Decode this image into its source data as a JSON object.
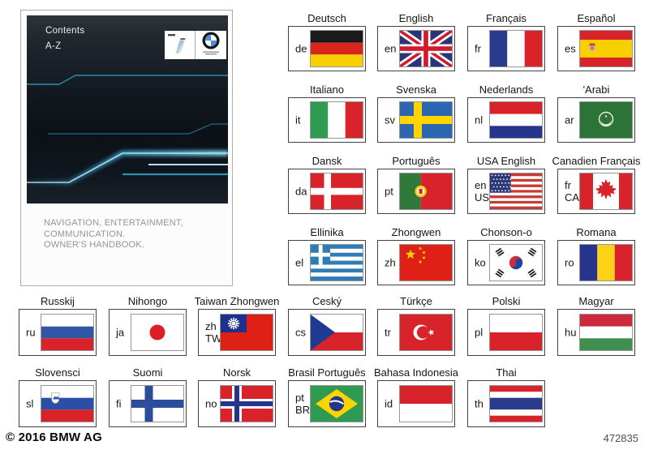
{
  "cover": {
    "title_line1": "Contents",
    "title_line2": "A-Z",
    "subtitle": "NAVIGATION, ENTERTAINMENT,\nCOMMUNICATION.\nOWNER'S HANDBOOK."
  },
  "icons": {
    "logos": [
      "bmw-i-logo",
      "bmw-roundel-logo"
    ],
    "flag_icons": [
      "de",
      "gb",
      "fr",
      "es",
      "it",
      "se",
      "nl",
      "arab",
      "dk",
      "pt",
      "us",
      "ca",
      "gr",
      "cn",
      "kr",
      "ro",
      "ru",
      "jp",
      "tw",
      "cz",
      "tr",
      "pl",
      "hu",
      "si",
      "fi",
      "no",
      "br",
      "id",
      "th"
    ]
  },
  "colors": {
    "streak_accent": "#49c4ef",
    "cover_background": "#121920"
  },
  "languages": {
    "rows": [
      [
        {
          "label": "Deutsch",
          "code": "de",
          "flag": "de"
        },
        {
          "label": "English",
          "code": "en",
          "flag": "gb"
        },
        {
          "label": "Français",
          "code": "fr",
          "flag": "fr"
        },
        {
          "label": "Español",
          "code": "es",
          "flag": "es"
        }
      ],
      [
        {
          "label": "Italiano",
          "code": "it",
          "flag": "it"
        },
        {
          "label": "Svenska",
          "code": "sv",
          "flag": "se"
        },
        {
          "label": "Nederlands",
          "code": "nl",
          "flag": "nl"
        },
        {
          "label": "'Arabi",
          "code": "ar",
          "flag": "arab"
        }
      ],
      [
        {
          "label": "Dansk",
          "code": "da",
          "flag": "dk"
        },
        {
          "label": "Português",
          "code": "pt",
          "flag": "pt"
        },
        {
          "label": "USA English",
          "code": "en",
          "code2": "US",
          "flag": "us"
        },
        {
          "label": "Canadien Français",
          "code": "fr",
          "code2": "CA",
          "flag": "ca"
        }
      ],
      [
        {
          "label": "Ellinika",
          "code": "el",
          "flag": "gr"
        },
        {
          "label": "Zhongwen",
          "code": "zh",
          "flag": "cn"
        },
        {
          "label": "Chonson-o",
          "code": "ko",
          "flag": "kr"
        },
        {
          "label": "Romana",
          "code": "ro",
          "flag": "ro"
        }
      ],
      [
        {
          "label": "Russkij",
          "code": "ru",
          "flag": "ru"
        },
        {
          "label": "Nihongo",
          "code": "ja",
          "flag": "jp"
        },
        {
          "label": "Taiwan Zhongwen",
          "code": "zh",
          "code2": "TW",
          "flag": "tw"
        },
        {
          "label": "Ceský",
          "code": "cs",
          "flag": "cz"
        },
        {
          "label": "Türkçe",
          "code": "tr",
          "flag": "tr"
        },
        {
          "label": "Polski",
          "code": "pl",
          "flag": "pl"
        },
        {
          "label": "Magyar",
          "code": "hu",
          "flag": "hu"
        }
      ],
      [
        {
          "label": "Slovensci",
          "code": "sl",
          "flag": "si"
        },
        {
          "label": "Suomi",
          "code": "fi",
          "flag": "fi"
        },
        {
          "label": "Norsk",
          "code": "no",
          "flag": "no"
        },
        {
          "label": "Brasil Português",
          "code": "pt",
          "code2": "BR",
          "flag": "br"
        },
        {
          "label": "Bahasa Indonesia",
          "code": "id",
          "flag": "id"
        },
        {
          "label": "Thai",
          "code": "th",
          "flag": "th"
        }
      ]
    ]
  },
  "footer": {
    "copyright": "© 2016 BMW AG",
    "document_number": "472835"
  }
}
